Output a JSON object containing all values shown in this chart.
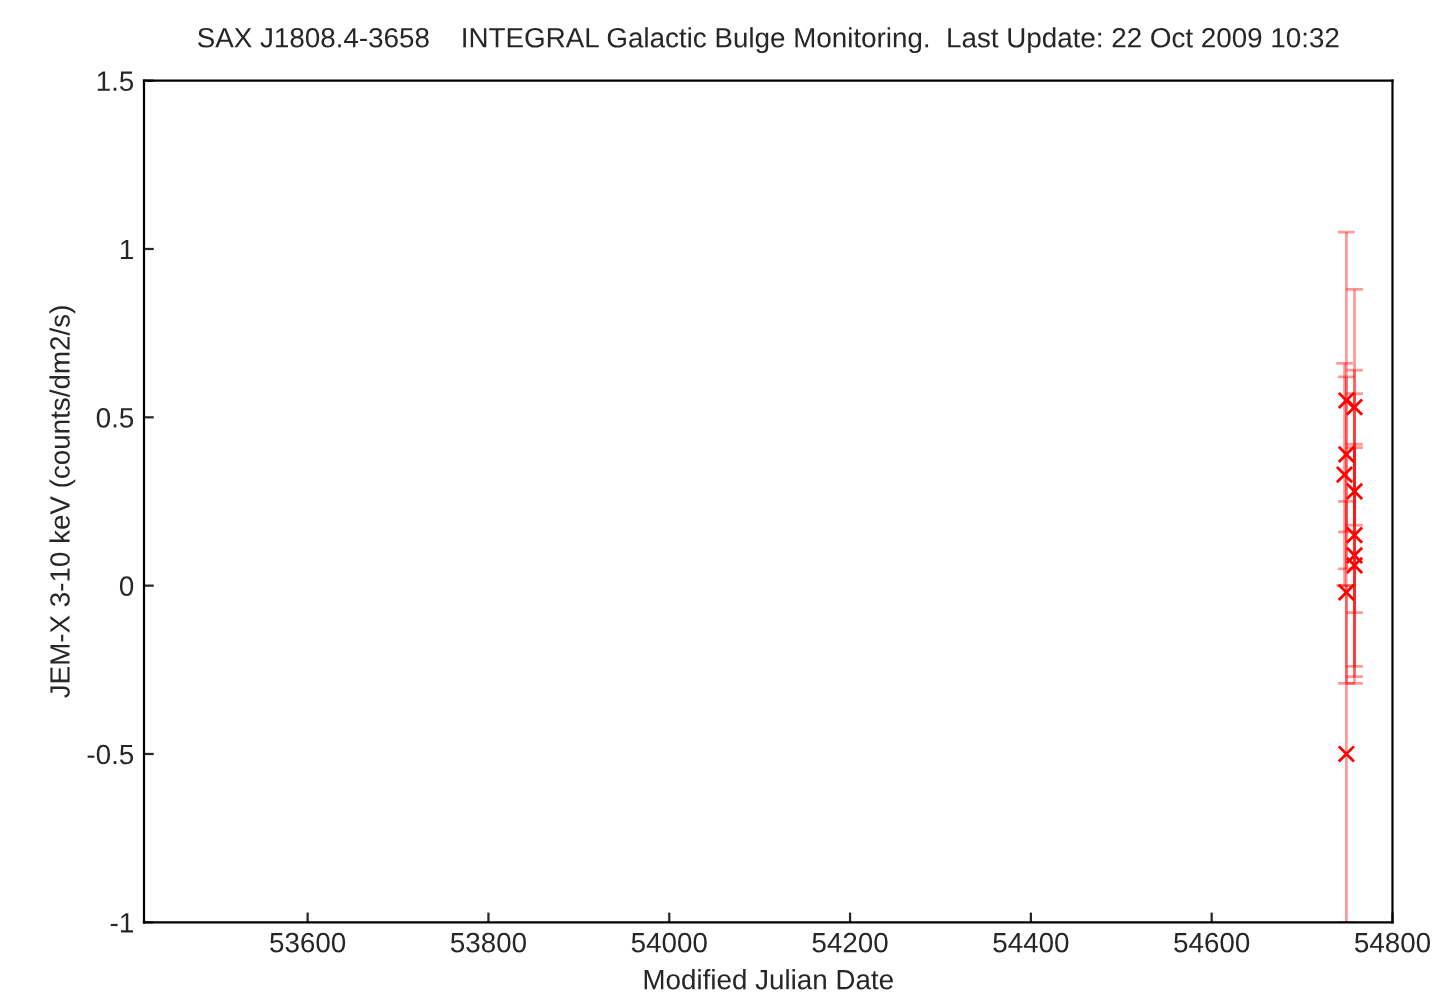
{
  "chart_data": {
    "type": "scatter",
    "title": "SAX J1808.4-3658    INTEGRAL Galactic Bulge Monitoring.  Last Update: 22 Oct 2009 10:32",
    "xlabel": "Modified Julian Date",
    "ylabel": "JEM-X 3-10 keV (counts/dm2/s)",
    "series": [
      {
        "color": "#ff0000",
        "x": [
          54749,
          54758,
          54749,
          54747,
          54758,
          54758,
          54758,
          54758,
          54749,
          54749
        ],
        "values": [
          0.55,
          0.53,
          0.39,
          0.33,
          0.28,
          0.15,
          0.09,
          0.06,
          -0.02,
          -0.5
        ],
        "errors": [
          0.5,
          0.35,
          0.23,
          0.33,
          0.36,
          0.42,
          0.33,
          0.35,
          0.27,
          0.5
        ]
      }
    ],
    "xlim": [
      53419,
      54800
    ],
    "xticks": [
      53600,
      53800,
      54000,
      54200,
      54400,
      54600,
      54800
    ],
    "ylim": [
      -1,
      1.5
    ],
    "yticks": [
      -1,
      -0.5,
      0,
      0.5,
      1,
      1.5
    ],
    "marker": "cross",
    "grid": false,
    "legend": false
  }
}
